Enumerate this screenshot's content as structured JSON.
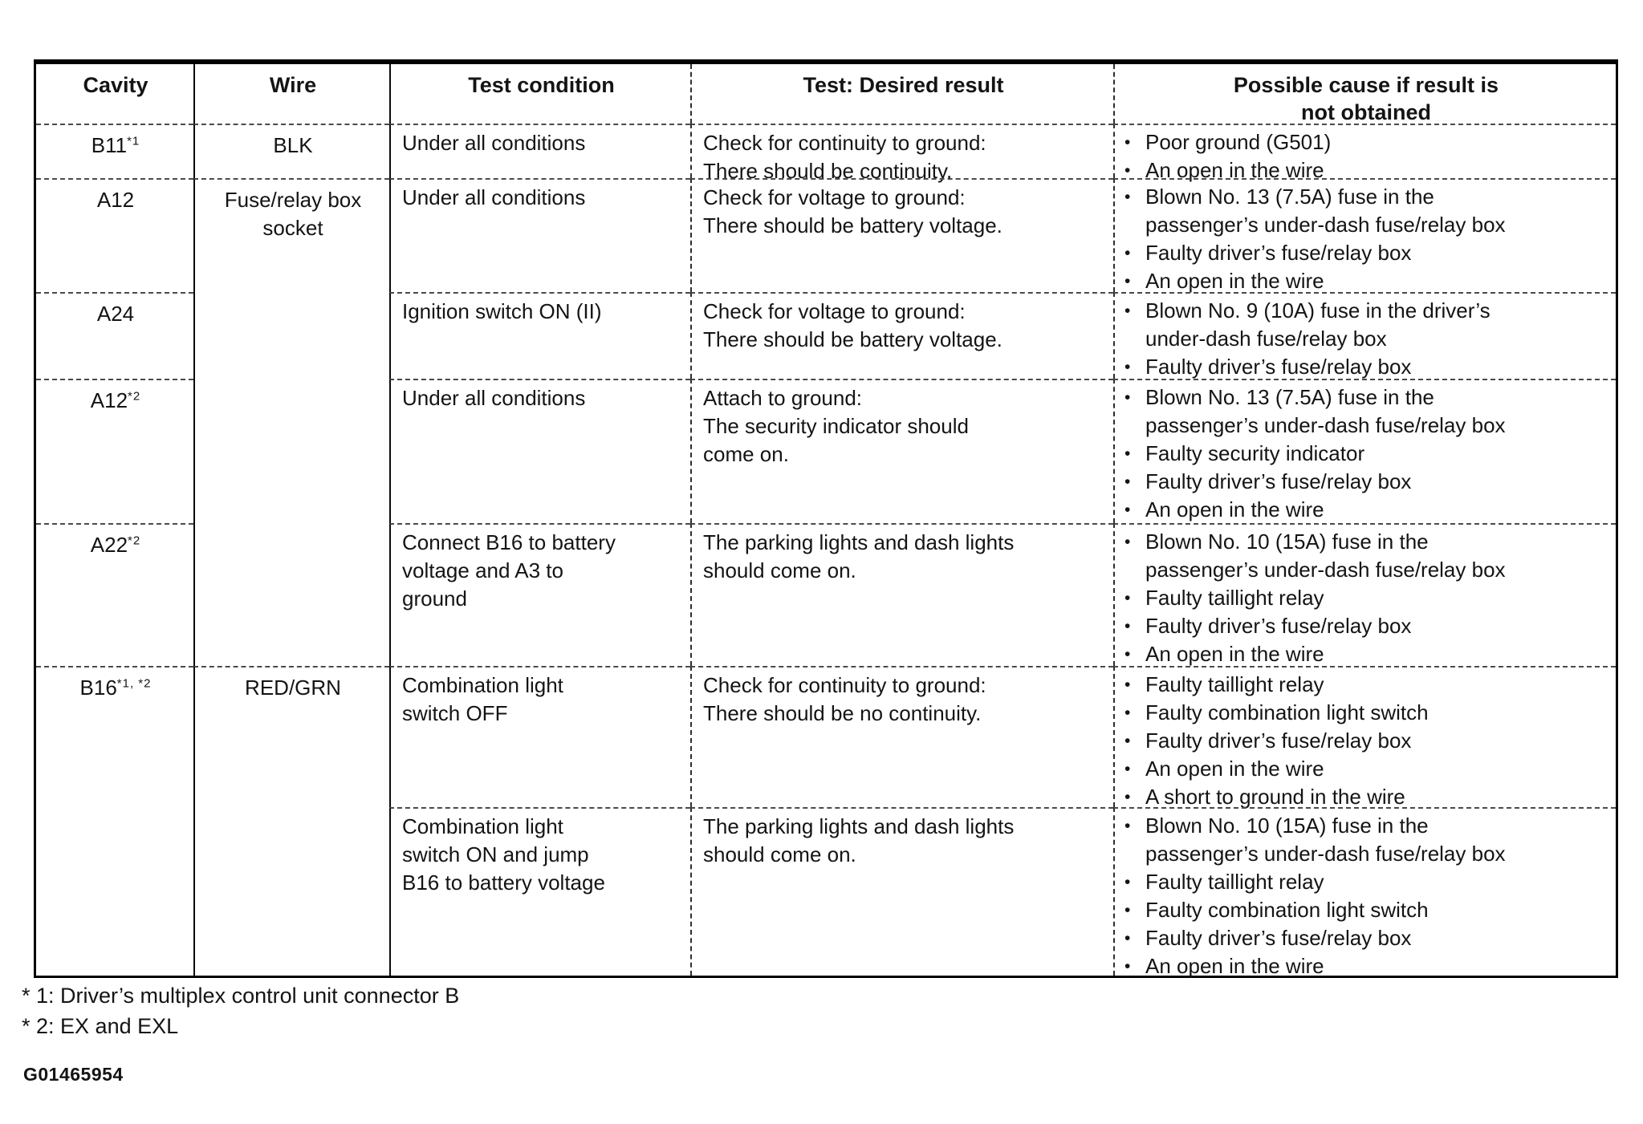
{
  "icons": {
    "bullet": "•"
  },
  "colors": {
    "paper": "#ffffff",
    "ink": "#141414",
    "rule": "#000000"
  },
  "table": {
    "headers": {
      "cavity": "Cavity",
      "wire": "Wire",
      "condition": "Test condition",
      "result": "Test: Desired result",
      "cause": "Possible cause if result is\nnot obtained"
    },
    "rows": [
      {
        "cavity": "B11",
        "cavity_sup": "*1",
        "wire": "BLK",
        "condition": "Under all conditions",
        "result": "Check for continuity to ground:\nThere should be continuity.",
        "causes": [
          "Poor ground (G501)",
          "An open in the wire"
        ]
      },
      {
        "cavity": "A12",
        "cavity_sup": "",
        "wire": "Fuse/relay box\nsocket",
        "condition": "Under all conditions",
        "result": "Check for voltage to ground:\nThere should be battery voltage.",
        "causes": [
          "Blown No. 13 (7.5A) fuse in the\npassenger’s under-dash fuse/relay box",
          "Faulty driver’s fuse/relay box",
          "An open in the wire"
        ]
      },
      {
        "cavity": "A24",
        "cavity_sup": "",
        "condition": "Ignition switch ON (II)",
        "result": "Check for voltage to ground:\nThere should be battery voltage.",
        "causes": [
          "Blown No. 9 (10A) fuse in the driver’s\nunder-dash fuse/relay box",
          "Faulty driver’s fuse/relay box"
        ]
      },
      {
        "cavity": "A12",
        "cavity_sup": "*2",
        "condition": "Under all conditions",
        "result": "Attach to ground:\nThe security indicator should\ncome on.",
        "causes": [
          "Blown No. 13 (7.5A) fuse in the\npassenger’s under-dash fuse/relay box",
          "Faulty security indicator",
          "Faulty driver’s fuse/relay box",
          "An open in the wire"
        ]
      },
      {
        "cavity": "A22",
        "cavity_sup": "*2",
        "condition": "Connect B16 to battery\nvoltage and A3 to\nground",
        "result": "The parking lights and dash lights\nshould come on.",
        "causes": [
          "Blown No. 10 (15A) fuse in the\npassenger’s under-dash fuse/relay box",
          "Faulty taillight relay",
          "Faulty driver’s fuse/relay box",
          "An open in the wire"
        ]
      },
      {
        "cavity": "B16",
        "cavity_sup": "*1, *2",
        "wire": "RED/GRN",
        "condition": "Combination light\nswitch OFF",
        "result": "Check for continuity to ground:\nThere should be no continuity.",
        "causes": [
          "Faulty taillight relay",
          "Faulty combination light switch",
          "Faulty driver’s fuse/relay box",
          "An open in the wire",
          "A short to ground in the wire"
        ]
      },
      {
        "cavity": "",
        "cavity_sup": "",
        "condition": "Combination light\nswitch ON and jump\nB16 to battery voltage",
        "result": "The parking lights and dash lights\nshould come on.",
        "causes": [
          "Blown No. 10 (15A) fuse in the\npassenger’s under-dash fuse/relay box",
          "Faulty taillight relay",
          "Faulty combination light switch",
          "Faulty driver’s fuse/relay box",
          "An open in the wire"
        ]
      }
    ]
  },
  "footnotes": [
    "* 1: Driver’s multiplex control unit connector B",
    "* 2: EX and EXL"
  ],
  "figure_code": "G01465954"
}
